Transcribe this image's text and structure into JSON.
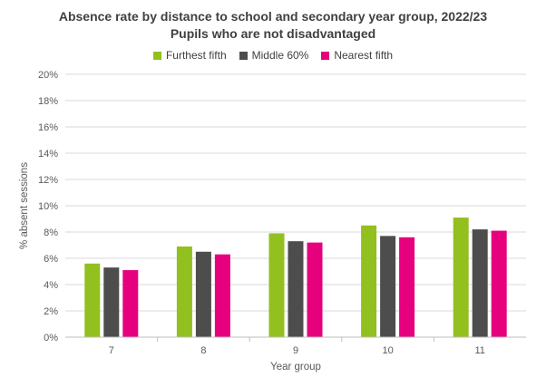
{
  "chart_data": {
    "type": "bar",
    "title": "Absence rate by distance to school and secondary year group, 2022/23",
    "subtitle": "Pupils who are not disadvantaged",
    "xlabel": "Year group",
    "ylabel": "% absent sessions",
    "categories": [
      "7",
      "8",
      "9",
      "10",
      "11"
    ],
    "ylim": [
      0,
      20
    ],
    "yticks": [
      "0%",
      "2%",
      "4%",
      "6%",
      "8%",
      "10%",
      "12%",
      "14%",
      "16%",
      "18%",
      "20%"
    ],
    "grid": true,
    "legend_position": "top",
    "series": [
      {
        "name": "Furthest fifth",
        "color": "#92c01f",
        "values": [
          5.6,
          6.9,
          7.9,
          8.5,
          9.1
        ]
      },
      {
        "name": "Middle 60%",
        "color": "#4d4d4d",
        "values": [
          5.3,
          6.5,
          7.3,
          7.7,
          8.2
        ]
      },
      {
        "name": "Nearest fifth",
        "color": "#e6007e",
        "values": [
          5.1,
          6.3,
          7.2,
          7.6,
          8.1
        ]
      }
    ]
  }
}
